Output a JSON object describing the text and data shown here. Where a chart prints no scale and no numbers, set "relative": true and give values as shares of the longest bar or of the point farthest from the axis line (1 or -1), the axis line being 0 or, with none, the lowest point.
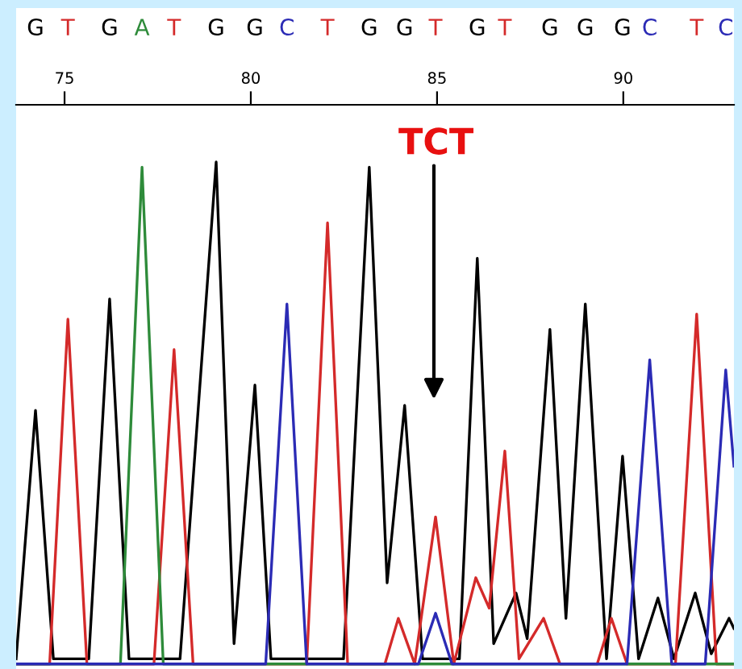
{
  "chart_data": {
    "type": "line",
    "relative": true,
    "legend": false,
    "grid": false,
    "marker": "none",
    "line_style": "solid",
    "xlim": [
      73.7,
      92.97
    ],
    "xticks": [
      75,
      80,
      85,
      90
    ],
    "annotations": [
      "TCT",
      "G",
      "T",
      "G",
      "A",
      "T",
      "G",
      "G",
      "C",
      "T",
      "G",
      "G",
      "T",
      "G",
      "T",
      "G",
      "G",
      "G",
      "C",
      "T",
      "C"
    ],
    "series": [
      {
        "color": "#000000",
        "x": [
          73.7,
          74.22,
          74.7,
          75.65,
          76.21,
          76.73,
          78.1,
          79.07,
          79.55,
          80.11,
          80.54,
          82.49,
          83.18,
          83.66,
          84.13,
          84.61,
          85.6,
          86.08,
          86.52,
          87.12,
          87.42,
          88.03,
          88.46,
          88.98,
          89.55,
          89.98,
          90.41,
          90.93,
          91.36,
          91.93,
          92.36,
          92.84,
          92.97
        ],
        "values": [
          0.02,
          0.51,
          0.02,
          0.02,
          0.73,
          0.02,
          0.02,
          1.0,
          0.05,
          0.56,
          0.02,
          0.02,
          0.99,
          0.17,
          0.52,
          0.02,
          0.02,
          0.81,
          0.05,
          0.15,
          0.06,
          0.67,
          0.1,
          0.72,
          0.02,
          0.42,
          0.02,
          0.14,
          0.02,
          0.15,
          0.03,
          0.1,
          0.08
        ]
      },
      {
        "color": "#d42a2a",
        "x": [
          73.7,
          74.6,
          75.09,
          75.6,
          77.4,
          77.94,
          78.45,
          81.5,
          82.06,
          82.6,
          83.6,
          83.96,
          84.4,
          84.96,
          85.45,
          86.04,
          86.4,
          86.82,
          87.2,
          87.86,
          88.3,
          89.3,
          89.68,
          90.1,
          91.4,
          91.97,
          92.5,
          92.97
        ],
        "values": [
          0.01,
          0.01,
          0.69,
          0.01,
          0.01,
          0.63,
          0.01,
          0.01,
          0.88,
          0.01,
          0.01,
          0.1,
          0.01,
          0.3,
          0.01,
          0.18,
          0.12,
          0.43,
          0.02,
          0.1,
          0.01,
          0.01,
          0.1,
          0.01,
          0.01,
          0.7,
          0.01,
          0.01
        ]
      },
      {
        "color": "#2e8b3a",
        "x": [
          73.7,
          76.5,
          77.08,
          77.65,
          92.97
        ],
        "values": [
          0.01,
          0.01,
          0.99,
          0.01,
          0.01
        ]
      },
      {
        "color": "#2b2bb5",
        "x": [
          73.7,
          80.4,
          80.97,
          81.5,
          84.5,
          84.96,
          85.4,
          90.1,
          90.71,
          91.3,
          92.2,
          92.75,
          92.97
        ],
        "values": [
          0.01,
          0.01,
          0.72,
          0.01,
          0.01,
          0.11,
          0.01,
          0.01,
          0.61,
          0.01,
          0.01,
          0.59,
          0.4
        ]
      }
    ]
  }
}
